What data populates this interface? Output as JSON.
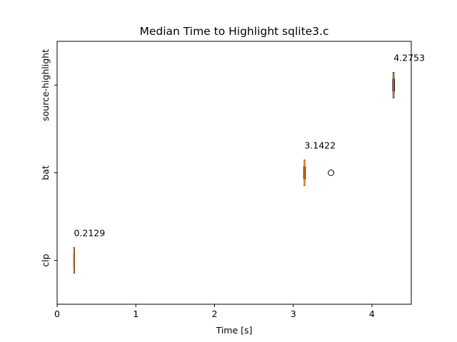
{
  "chart_data": {
    "type": "boxplot",
    "orientation": "horizontal",
    "title": "Median Time to Highlight sqlite3.c",
    "xlabel": "Time [s]",
    "ylabel": "",
    "xlim": [
      0,
      4.5
    ],
    "xticks": [
      0,
      1,
      2,
      3,
      4
    ],
    "grid": false,
    "categories": [
      "clp",
      "bat",
      "source-highlight"
    ],
    "boxes": [
      {
        "category": "clp",
        "min": 0.209,
        "q1": 0.2115,
        "median": 0.2129,
        "q3": 0.214,
        "max": 0.216,
        "outliers": [],
        "label": "0.2129"
      },
      {
        "category": "bat",
        "min": 3.133,
        "q1": 3.138,
        "median": 3.1422,
        "q3": 3.147,
        "max": 3.152,
        "outliers": [
          3.48
        ],
        "label": "3.1422"
      },
      {
        "category": "source-highlight",
        "min": 4.264,
        "q1": 4.268,
        "median": 4.2753,
        "q3": 4.281,
        "max": 4.287,
        "outliers": [],
        "label": "4.2753"
      }
    ],
    "colors": {
      "box": "#000000",
      "median": "#ff7f0e",
      "outlier": "#000000"
    }
  }
}
